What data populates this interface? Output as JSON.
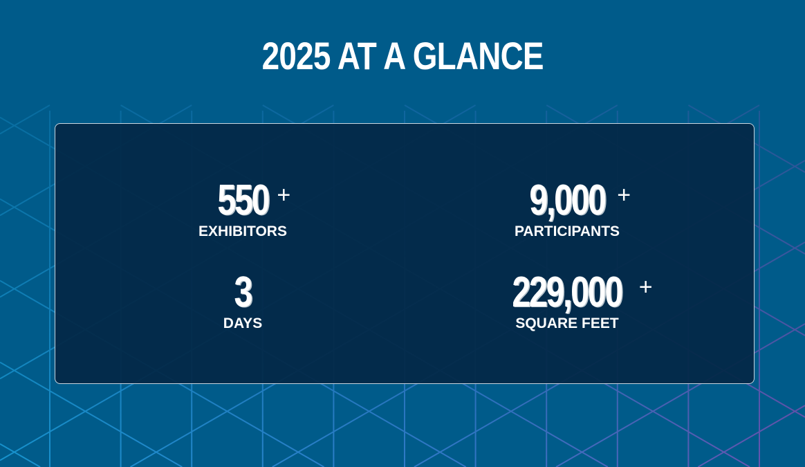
{
  "header": {
    "title": "2025 AT A GLANCE"
  },
  "stats": [
    {
      "value": "550",
      "suffix": "+",
      "label": "EXHIBITORS"
    },
    {
      "value": "9,000",
      "suffix": "+",
      "label": "PARTICIPANTS"
    },
    {
      "value": "3",
      "suffix": "",
      "label": "DAYS"
    },
    {
      "value": "229,000",
      "suffix": "+",
      "label": "SQUARE FEET"
    }
  ],
  "colors": {
    "background": "#005b8a",
    "card": "#032846",
    "pattern_start": "#1a9ad6",
    "pattern_end": "#7a4fb0"
  }
}
